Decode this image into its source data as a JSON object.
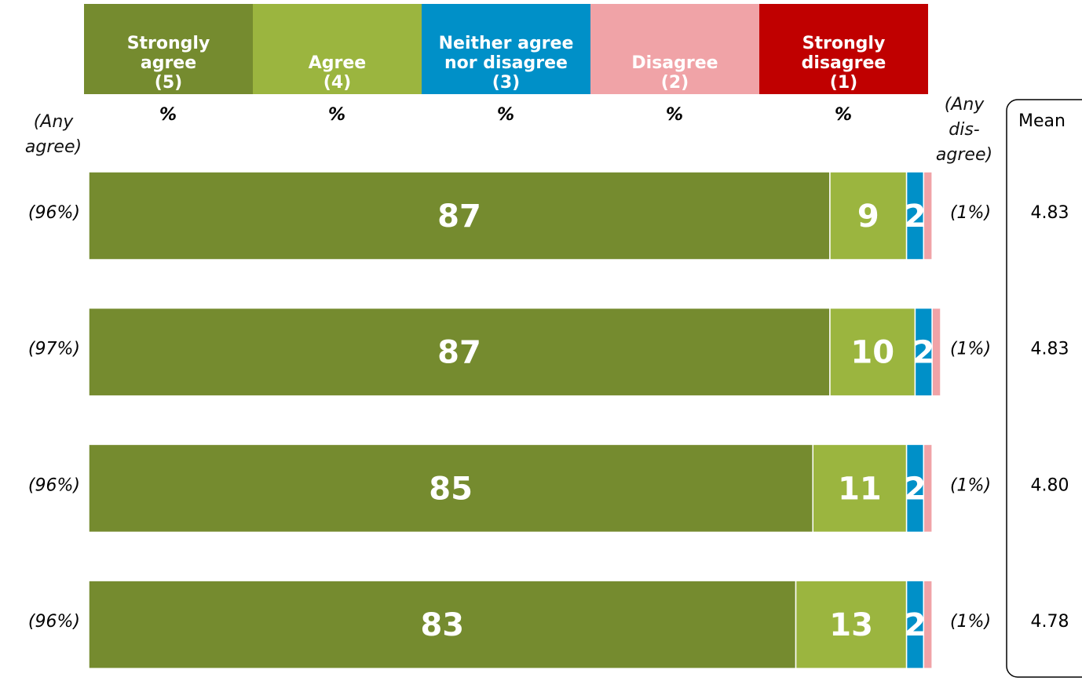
{
  "chart_data": {
    "type": "stacked-bar-horizontal",
    "xlim": [
      0,
      100
    ],
    "series": [
      {
        "name": "Strongly\nagree\n(5)",
        "color": "#758b2f",
        "values": [
          87,
          87,
          85,
          83
        ]
      },
      {
        "name": "Agree\n(4)",
        "color": "#9bb53f",
        "values": [
          9,
          10,
          11,
          13
        ]
      },
      {
        "name": "Neither agree\nnor disagree\n(3)",
        "color": "#0090c8",
        "values": [
          2,
          2,
          2,
          2
        ]
      },
      {
        "name": "Disagree\n(2)",
        "color": "#f0a3a7",
        "values": [
          1,
          1,
          1,
          1
        ]
      },
      {
        "name": "Strongly\ndisagree\n(1)",
        "color": "#c00000",
        "values": [
          0,
          0,
          0,
          0
        ]
      }
    ],
    "unit_labels": [
      "%",
      "%",
      "%",
      "%",
      "%"
    ],
    "any_agree": {
      "title": "(Any\nagree)",
      "values": [
        96,
        97,
        96,
        96
      ],
      "value_labels": [
        "(96%)",
        "(97%)",
        "(96%)",
        "(96%)"
      ]
    },
    "any_disagree": {
      "title": "(Any\ndis-\nagree)",
      "values": [
        1,
        1,
        1,
        1
      ],
      "value_labels": [
        "(1%)",
        "(1%)",
        "(1%)",
        "(1%)"
      ]
    },
    "mean": {
      "title": "Mean",
      "values": [
        4.83,
        4.83,
        4.8,
        4.78
      ],
      "value_labels": [
        "4.83",
        "4.83",
        "4.80",
        "4.78"
      ]
    }
  }
}
